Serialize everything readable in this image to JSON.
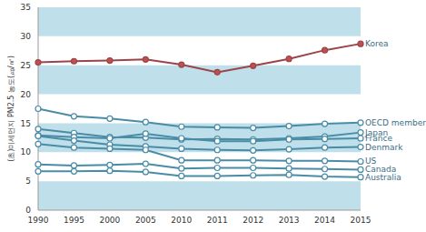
{
  "chart_data": {
    "type": "line",
    "y_label": "(초)미세먼지 PM2.5 농도(㎍/㎥)",
    "categories": [
      "1990",
      "1995",
      "2000",
      "2005",
      "2010",
      "2011",
      "2012",
      "2013",
      "2014",
      "2015"
    ],
    "ylim": [
      0,
      35
    ],
    "yticks": [
      0,
      5,
      10,
      15,
      20,
      25,
      30,
      35
    ],
    "grid": true,
    "series": [
      {
        "name": "Korea",
        "color": "#9b4449",
        "marker": "circle",
        "values": [
          25.5,
          25.7,
          25.8,
          26.0,
          25.1,
          23.8,
          24.9,
          26.1,
          27.6,
          28.7
        ]
      },
      {
        "name": "OECD members",
        "color": "#4a8ca6",
        "marker": "circle",
        "values": [
          17.5,
          16.2,
          15.8,
          15.2,
          14.4,
          14.3,
          14.2,
          14.5,
          14.9,
          15.1
        ]
      },
      {
        "name": "Japan",
        "color": "#4a8ca6",
        "marker": "circle",
        "values": [
          14.0,
          13.3,
          12.6,
          12.5,
          12.2,
          12.3,
          12.2,
          12.4,
          12.7,
          13.4
        ]
      },
      {
        "name": "France",
        "color": "#4a8ca6",
        "marker": "circle",
        "values": [
          12.9,
          12.6,
          12.4,
          13.2,
          12.4,
          11.9,
          11.9,
          12.2,
          12.3,
          12.4
        ]
      },
      {
        "name": "Denmark",
        "color": "#4a8ca6",
        "marker": "circle",
        "values": [
          12.8,
          12.0,
          11.3,
          11.0,
          10.6,
          10.4,
          10.3,
          10.5,
          10.8,
          10.9
        ]
      },
      {
        "name": "US",
        "color": "#4a8ca6",
        "marker": "circle",
        "values": [
          11.4,
          10.8,
          10.6,
          10.4,
          8.6,
          8.6,
          8.6,
          8.5,
          8.5,
          8.4
        ]
      },
      {
        "name": "Canada",
        "color": "#4a8ca6",
        "marker": "circle",
        "values": [
          7.9,
          7.7,
          7.8,
          8.0,
          7.2,
          7.3,
          7.3,
          7.2,
          7.1,
          7.0
        ]
      },
      {
        "name": "Australia",
        "color": "#4a8ca6",
        "marker": "circle",
        "values": [
          6.7,
          6.7,
          6.8,
          6.6,
          5.9,
          5.9,
          6.0,
          6.1,
          5.8,
          5.7
        ]
      }
    ]
  }
}
